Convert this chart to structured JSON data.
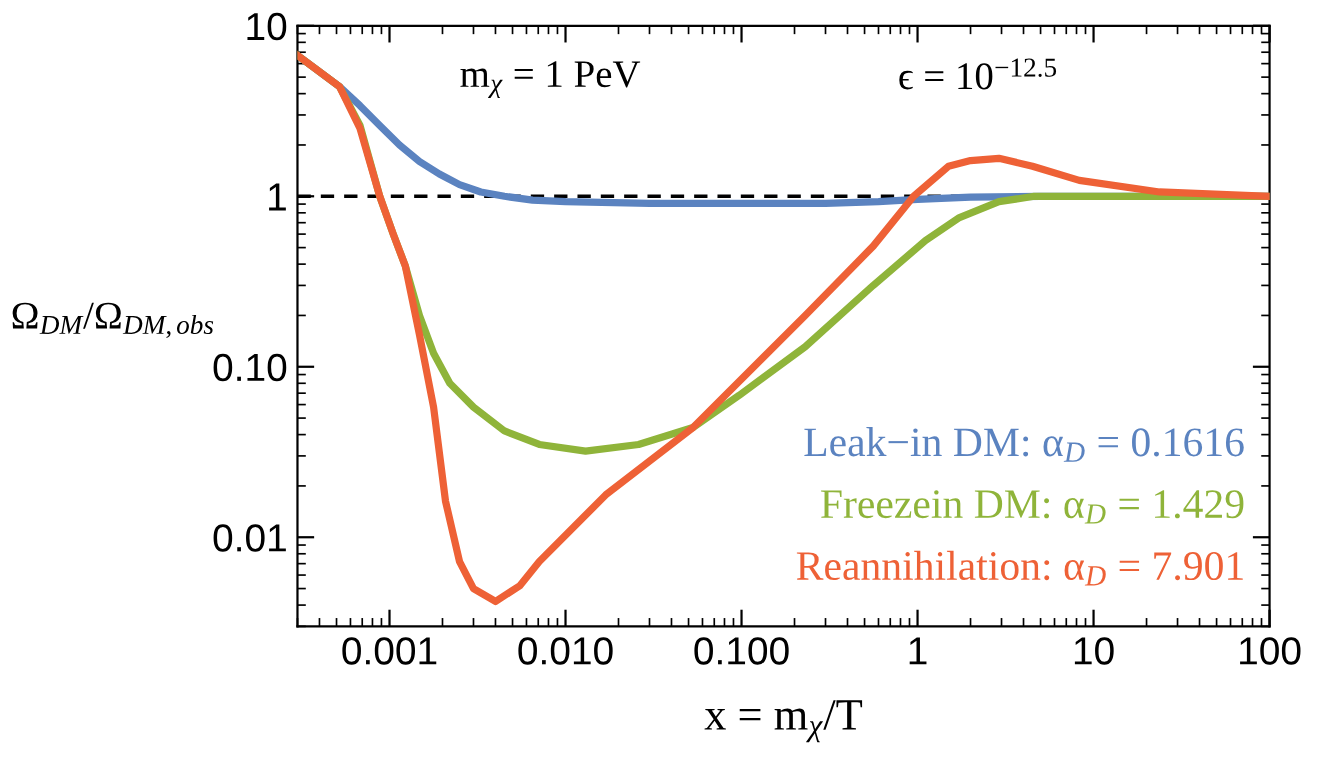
{
  "chart_data": {
    "type": "line",
    "xlabel": "x = m$_{χ}$/T",
    "ylabel": "Ω$_{DM}$/Ω$_{DM,obs}$",
    "log": "xy",
    "xlim": [
      0.0003,
      100
    ],
    "ylim": [
      0.003,
      10
    ],
    "xticks": [
      {
        "value": 0.001,
        "label": "0.001"
      },
      {
        "value": 0.01,
        "label": "0.010"
      },
      {
        "value": 0.1,
        "label": "0.100"
      },
      1,
      10,
      100
    ],
    "yticks": [
      {
        "value": 0.01,
        "label": "0.01"
      },
      {
        "value": 0.1,
        "label": "0.10"
      },
      1,
      10
    ],
    "grid": false,
    "legend": "bottom right",
    "marker": "none",
    "line_style": "solid",
    "annotations": [
      "m$_{χ}$ = 1 PeV",
      "ϵ = 10$^{−12.5}$"
    ],
    "ref_lines": [
      {
        "axis": "y",
        "value": 1,
        "label": null,
        "color": "#000000",
        "line_style": "dashed"
      }
    ],
    "series": [
      {
        "name": "Leak−in DM: α$_{D}$ = 0.1616",
        "color": "#5b83c0",
        "x": [
          0.0003,
          0.00052,
          0.00068,
          0.00088,
          0.00114,
          0.00148,
          0.00192,
          0.0025,
          0.0033,
          0.0045,
          0.0065,
          0.01,
          0.03,
          0.1,
          0.3,
          0.6,
          1.0,
          2.0,
          5.0,
          20,
          100
        ],
        "values": [
          6.7,
          4.4,
          3.4,
          2.6,
          2.0,
          1.6,
          1.35,
          1.17,
          1.06,
          1.0,
          0.95,
          0.93,
          0.91,
          0.91,
          0.91,
          0.93,
          0.96,
          0.99,
          1.0,
          1.0,
          1.0
        ]
      },
      {
        "name": "Freezein DM: α$_{D}$ = 1.429",
        "color": "#8fb43a",
        "x": [
          0.0003,
          0.00052,
          0.00068,
          0.00088,
          0.00105,
          0.00123,
          0.00148,
          0.00178,
          0.0022,
          0.003,
          0.0045,
          0.0071,
          0.013,
          0.026,
          0.053,
          0.097,
          0.23,
          0.56,
          1.11,
          1.73,
          2.9,
          4.6,
          10,
          100
        ],
        "values": [
          6.7,
          4.4,
          2.6,
          1.0,
          0.6,
          0.39,
          0.2,
          0.12,
          0.08,
          0.058,
          0.042,
          0.035,
          0.032,
          0.035,
          0.044,
          0.068,
          0.131,
          0.3,
          0.55,
          0.75,
          0.93,
          1.0,
          1.0,
          1.0
        ]
      },
      {
        "name": "Reannihilation: α$_{D}$ = 7.901",
        "color": "#ee6136",
        "x": [
          0.0003,
          0.00052,
          0.00068,
          0.00088,
          0.00105,
          0.00123,
          0.00148,
          0.00178,
          0.00208,
          0.0025,
          0.003,
          0.004,
          0.0055,
          0.0071,
          0.0169,
          0.053,
          0.23,
          0.56,
          0.95,
          1.5,
          2.0,
          2.9,
          4.5,
          8.3,
          23.7,
          100
        ],
        "values": [
          6.7,
          4.4,
          2.5,
          1.0,
          0.6,
          0.39,
          0.154,
          0.058,
          0.0163,
          0.0072,
          0.005,
          0.0042,
          0.0052,
          0.0072,
          0.0177,
          0.044,
          0.2,
          0.51,
          1.0,
          1.5,
          1.62,
          1.67,
          1.5,
          1.24,
          1.06,
          1.0
        ]
      }
    ]
  }
}
